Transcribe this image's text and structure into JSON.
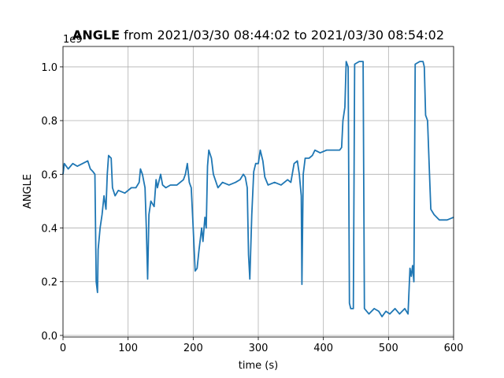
{
  "chart_data": {
    "type": "line",
    "title_bold": "ANGLE",
    "title": " from 2021/03/30 08:44:02 to 2021/03/30 08:54:02",
    "y_offset_label": "1e9",
    "xlabel": "time (s)",
    "ylabel": "ANGLE",
    "xlim": [
      0,
      600
    ],
    "ylim": [
      -0.006,
      1.076
    ],
    "xticks": [
      0,
      100,
      200,
      300,
      400,
      500,
      600
    ],
    "yticks": [
      {
        "value": 0,
        "label": "0.0"
      },
      0.2,
      0.4,
      0.6,
      0.8,
      {
        "value": 1,
        "label": "1.0"
      }
    ],
    "grid": true,
    "series": [
      {
        "color": "#1f77b4",
        "x": [
          0,
          2,
          8,
          15,
          22,
          30,
          38,
          42,
          46,
          49,
          51,
          53,
          54,
          57,
          60,
          63,
          66,
          68,
          70,
          74,
          76,
          80,
          85,
          95,
          105,
          112,
          117,
          119,
          122,
          126,
          128,
          130,
          132,
          135,
          140,
          143,
          145,
          150,
          153,
          158,
          165,
          175,
          185,
          188,
          191,
          194,
          197,
          200,
          203,
          206,
          209,
          213,
          215,
          218,
          220,
          222,
          224,
          228,
          231,
          238,
          245,
          255,
          265,
          272,
          277,
          280,
          283,
          285,
          287,
          290,
          293,
          296,
          300,
          303,
          307,
          310,
          315,
          325,
          335,
          345,
          350,
          355,
          360,
          363,
          366,
          367,
          369,
          372,
          378,
          383,
          387,
          395,
          405,
          415,
          425,
          428,
          430,
          433,
          435,
          438,
          440,
          442,
          446,
          448,
          455,
          461,
          463,
          470,
          478,
          485,
          490,
          496,
          502,
          510,
          517,
          525,
          530,
          533,
          535,
          537,
          539,
          541,
          548,
          553,
          555,
          557,
          560,
          563,
          565,
          570,
          578,
          590,
          600
        ],
        "values": [
          0.6,
          0.64,
          0.62,
          0.64,
          0.63,
          0.64,
          0.65,
          0.62,
          0.61,
          0.6,
          0.2,
          0.16,
          0.32,
          0.4,
          0.45,
          0.52,
          0.47,
          0.6,
          0.67,
          0.66,
          0.55,
          0.52,
          0.54,
          0.53,
          0.55,
          0.55,
          0.57,
          0.62,
          0.6,
          0.55,
          0.4,
          0.21,
          0.45,
          0.5,
          0.48,
          0.58,
          0.55,
          0.6,
          0.56,
          0.55,
          0.56,
          0.56,
          0.58,
          0.6,
          0.64,
          0.57,
          0.55,
          0.4,
          0.24,
          0.25,
          0.32,
          0.4,
          0.35,
          0.44,
          0.4,
          0.63,
          0.69,
          0.66,
          0.6,
          0.55,
          0.57,
          0.56,
          0.57,
          0.58,
          0.6,
          0.59,
          0.55,
          0.3,
          0.21,
          0.45,
          0.61,
          0.64,
          0.64,
          0.69,
          0.65,
          0.59,
          0.56,
          0.57,
          0.56,
          0.58,
          0.57,
          0.64,
          0.65,
          0.6,
          0.52,
          0.19,
          0.6,
          0.66,
          0.66,
          0.67,
          0.69,
          0.68,
          0.69,
          0.69,
          0.69,
          0.7,
          0.8,
          0.85,
          1.02,
          1.0,
          0.12,
          0.1,
          0.1,
          1.01,
          1.02,
          1.02,
          0.1,
          0.08,
          0.1,
          0.09,
          0.07,
          0.09,
          0.08,
          0.1,
          0.08,
          0.1,
          0.08,
          0.25,
          0.22,
          0.26,
          0.2,
          1.01,
          1.02,
          1.02,
          1.0,
          0.82,
          0.8,
          0.6,
          0.47,
          0.45,
          0.43,
          0.43,
          0.44
        ]
      }
    ]
  }
}
